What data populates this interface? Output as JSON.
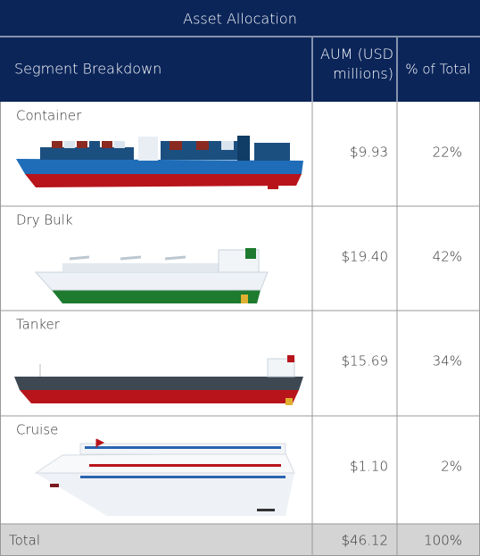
{
  "header": {
    "title": "Asset Allocation",
    "columns": [
      "Segment Breakdown",
      "AUM (USD millions)",
      "% of Total"
    ]
  },
  "table": {
    "rows": [
      [
        "Container",
        "$9.93",
        "22%"
      ],
      [
        "Dry Bulk",
        "$19.40",
        "42%"
      ],
      [
        "Tanker",
        "$15.69",
        "34%"
      ],
      [
        "Cruise",
        "$1.10",
        "2%"
      ]
    ],
    "total": [
      "Total",
      "$46.12",
      "100%"
    ]
  }
}
